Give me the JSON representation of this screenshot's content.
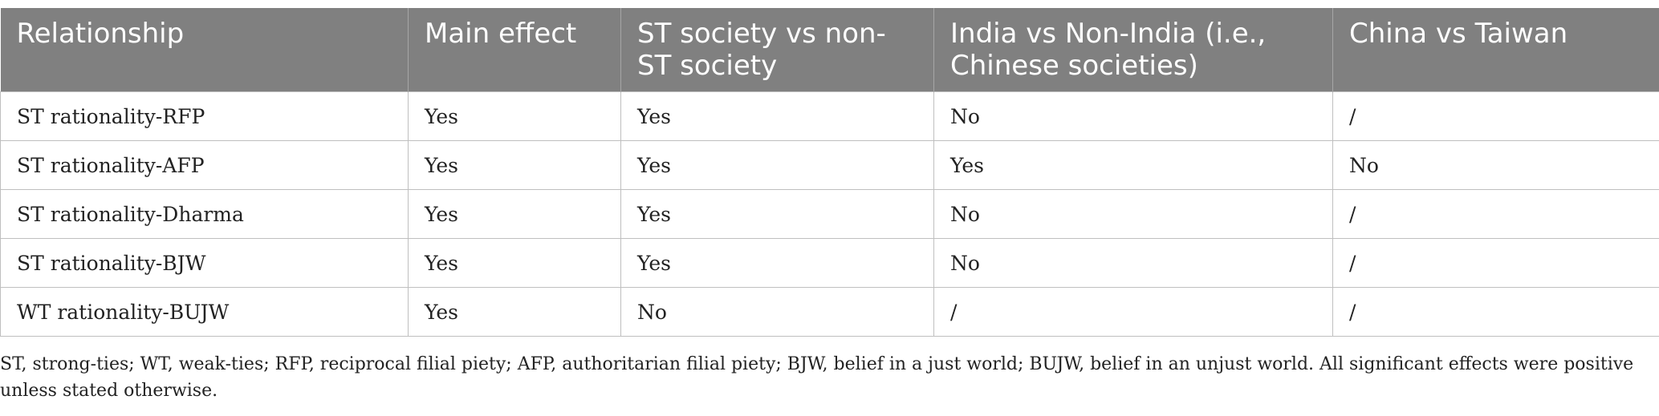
{
  "table": {
    "headers": [
      "Relationship",
      "Main effect",
      "ST society vs non-ST society",
      "India vs Non-India (i.e., Chinese societies)",
      "China vs Taiwan"
    ],
    "rows": [
      [
        "ST rationality-RFP",
        "Yes",
        "Yes",
        "No",
        "/"
      ],
      [
        "ST rationality-AFP",
        "Yes",
        "Yes",
        "Yes",
        "No"
      ],
      [
        "ST rationality-Dharma",
        "Yes",
        "Yes",
        "No",
        "/"
      ],
      [
        "ST rationality-BJW",
        "Yes",
        "Yes",
        "No",
        "/"
      ],
      [
        "WT rationality-BUJW",
        "Yes",
        "No",
        "/",
        "/"
      ]
    ]
  },
  "footnote": "ST, strong-ties; WT, weak-ties; RFP, reciprocal filial piety; AFP, authoritarian filial piety; BJW, belief in a just world; BUJW, belief in an unjust world. All significant effects were positive unless stated otherwise.",
  "colors": {
    "header_bg": "#808080",
    "header_text": "#ffffff",
    "border": "#bfbfbf"
  }
}
